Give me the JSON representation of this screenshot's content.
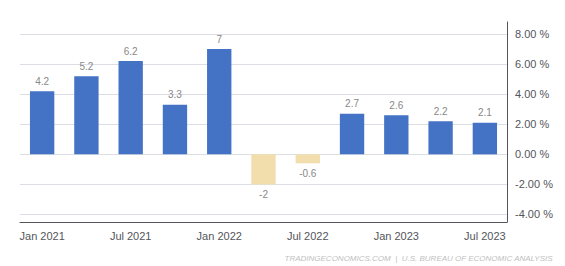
{
  "chart_data": {
    "type": "bar",
    "categories": [
      "Jan 2021",
      null,
      "Jul 2021",
      null,
      "Jan 2022",
      null,
      "Jul 2022",
      null,
      "Jan 2023",
      null,
      "Jul 2023"
    ],
    "values": [
      4.2,
      5.2,
      6.2,
      3.3,
      7.0,
      -2.0,
      -0.6,
      2.7,
      2.6,
      2.2,
      2.1
    ],
    "colors": [
      "#4472C4",
      "#4472C4",
      "#4472C4",
      "#4472C4",
      "#4472C4",
      "#F2DEAD",
      "#F2DEAD",
      "#4472C4",
      "#4472C4",
      "#4472C4",
      "#4472C4"
    ],
    "ylim": [
      -4.5,
      8.8
    ],
    "yticks": [
      {
        "value": 8,
        "label": "8.00 %"
      },
      {
        "value": 6,
        "label": "6.00 %"
      },
      {
        "value": 4,
        "label": "4.00 %"
      },
      {
        "value": 2,
        "label": "2.00 %"
      },
      {
        "value": 0,
        "label": "0.00 %"
      },
      {
        "value": -2,
        "label": "-2.00 %"
      },
      {
        "value": -4,
        "label": "-4.00 %"
      }
    ],
    "grid": true,
    "data_labels": true,
    "annotations": [
      "TRADINGECONOMICS.COM  |  U.S. BUREAU OF ECONOMIC ANALYSIS"
    ]
  }
}
